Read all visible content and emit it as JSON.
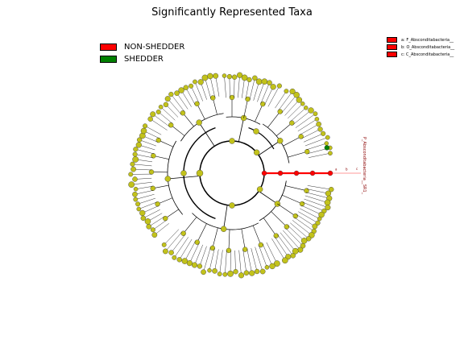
{
  "title": "Significantly Represented Taxa",
  "legend": [
    {
      "label": "NON-SHEDDER",
      "color": "#ff0000"
    },
    {
      "label": "SHEDDER",
      "color": "#008000"
    }
  ],
  "side_legend": [
    {
      "label": "a: F_Absconditabacteria__",
      "color": "#ff0000"
    },
    {
      "label": "b: O_Absconditabacteria__",
      "color": "#ff0000"
    },
    {
      "label": "c: C_Absconditabacteria__",
      "color": "#ff0000"
    }
  ],
  "vertical_label": "P_Absconditabacteria__SR1_",
  "chart_data": {
    "type": "cladogram",
    "title": "Significantly Represented Taxa",
    "node_color_default": "#c2c21b",
    "highlighted_clade": {
      "group": "NON-SHEDDER",
      "color": "#ff0000",
      "taxa": [
        "P_Absconditabacteria__SR1_",
        "C_Absconditabacteria__",
        "O_Absconditabacteria__",
        "F_Absconditabacteria__"
      ],
      "letters": [
        "a",
        "b",
        "c"
      ]
    },
    "shedder_nodes": 1,
    "shedder_color": "#008000"
  }
}
